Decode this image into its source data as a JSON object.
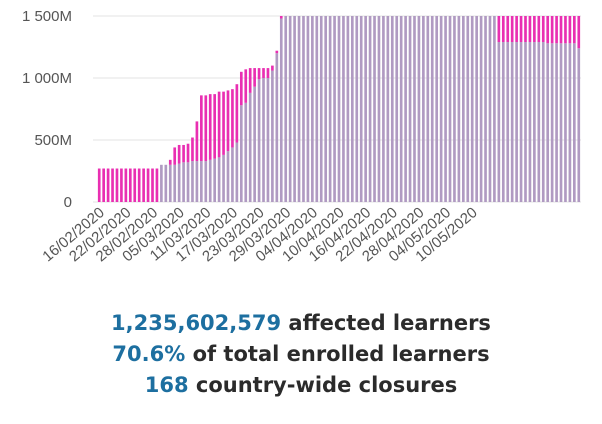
{
  "chart_data": {
    "type": "bar",
    "stacked": true,
    "ylim": [
      0,
      1500
    ],
    "y_ticks": [
      {
        "value": 0,
        "label": "0"
      },
      {
        "value": 500,
        "label": "500M"
      },
      {
        "value": 1000,
        "label": "1 000M"
      },
      {
        "value": 1500,
        "label": "1 500M"
      }
    ],
    "x_tick_labels": [
      "16/02/2020",
      "22/02/2020",
      "28/02/2020",
      "05/03/2020",
      "11/03/2020",
      "17/03/2020",
      "23/03/2020",
      "29/03/2020",
      "04/04/2020",
      "10/04/2020",
      "16/04/2020",
      "22/04/2020",
      "28/04/2020",
      "04/05/2020",
      "10/05/2020"
    ],
    "x_first_date": "16/02/2020",
    "x_last_date": "10/05/2020",
    "x_tick_every_days": 6,
    "series": [
      {
        "color": "#b09ac2",
        "values": [
          0,
          0,
          0,
          0,
          0,
          0,
          0,
          0,
          0,
          0,
          0,
          0,
          0,
          0,
          300,
          300,
          300,
          300,
          310,
          320,
          320,
          330,
          330,
          330,
          330,
          340,
          350,
          360,
          380,
          410,
          440,
          480,
          780,
          800,
          880,
          930,
          990,
          1000,
          1000,
          1060,
          1200,
          1480,
          1500,
          1500,
          1500,
          1500,
          1500,
          1500,
          1500,
          1500,
          1500,
          1500,
          1500,
          1500,
          1500,
          1500,
          1500,
          1500,
          1500,
          1500,
          1500,
          1500,
          1500,
          1500,
          1500,
          1500,
          1500,
          1500,
          1500,
          1500,
          1500,
          1500,
          1500,
          1500,
          1500,
          1500,
          1500,
          1500,
          1500,
          1500,
          1500,
          1500,
          1500,
          1500,
          1500,
          1500,
          1500,
          1500,
          1500,
          1500,
          1290,
          1290,
          1290,
          1290,
          1290,
          1290,
          1290,
          1290,
          1290,
          1290,
          1290,
          1280,
          1280,
          1280,
          1280,
          1280,
          1280,
          1280,
          1240
        ]
      },
      {
        "color": "#e92fb2",
        "values": [
          270,
          270,
          270,
          270,
          270,
          270,
          270,
          270,
          270,
          270,
          270,
          270,
          270,
          270,
          0,
          0,
          40,
          140,
          150,
          140,
          150,
          190,
          320,
          530,
          530,
          530,
          520,
          530,
          510,
          490,
          470,
          470,
          270,
          270,
          200,
          150,
          90,
          80,
          80,
          40,
          20,
          20,
          0,
          0,
          0,
          0,
          0,
          0,
          0,
          0,
          0,
          0,
          0,
          0,
          0,
          0,
          0,
          0,
          0,
          0,
          0,
          0,
          0,
          0,
          0,
          0,
          0,
          0,
          0,
          0,
          0,
          0,
          0,
          0,
          0,
          0,
          0,
          0,
          0,
          0,
          0,
          0,
          0,
          0,
          0,
          0,
          0,
          0,
          0,
          0,
          210,
          210,
          210,
          210,
          210,
          210,
          210,
          210,
          210,
          210,
          210,
          220,
          220,
          220,
          220,
          220,
          220,
          220,
          260
        ]
      }
    ]
  },
  "stats": {
    "learners_value": "1,235,602,579",
    "learners_label": "affected learners",
    "percent_value": "70.6%",
    "percent_label": "of total enrolled learners",
    "closures_value": "168",
    "closures_label": "country-wide closures"
  }
}
